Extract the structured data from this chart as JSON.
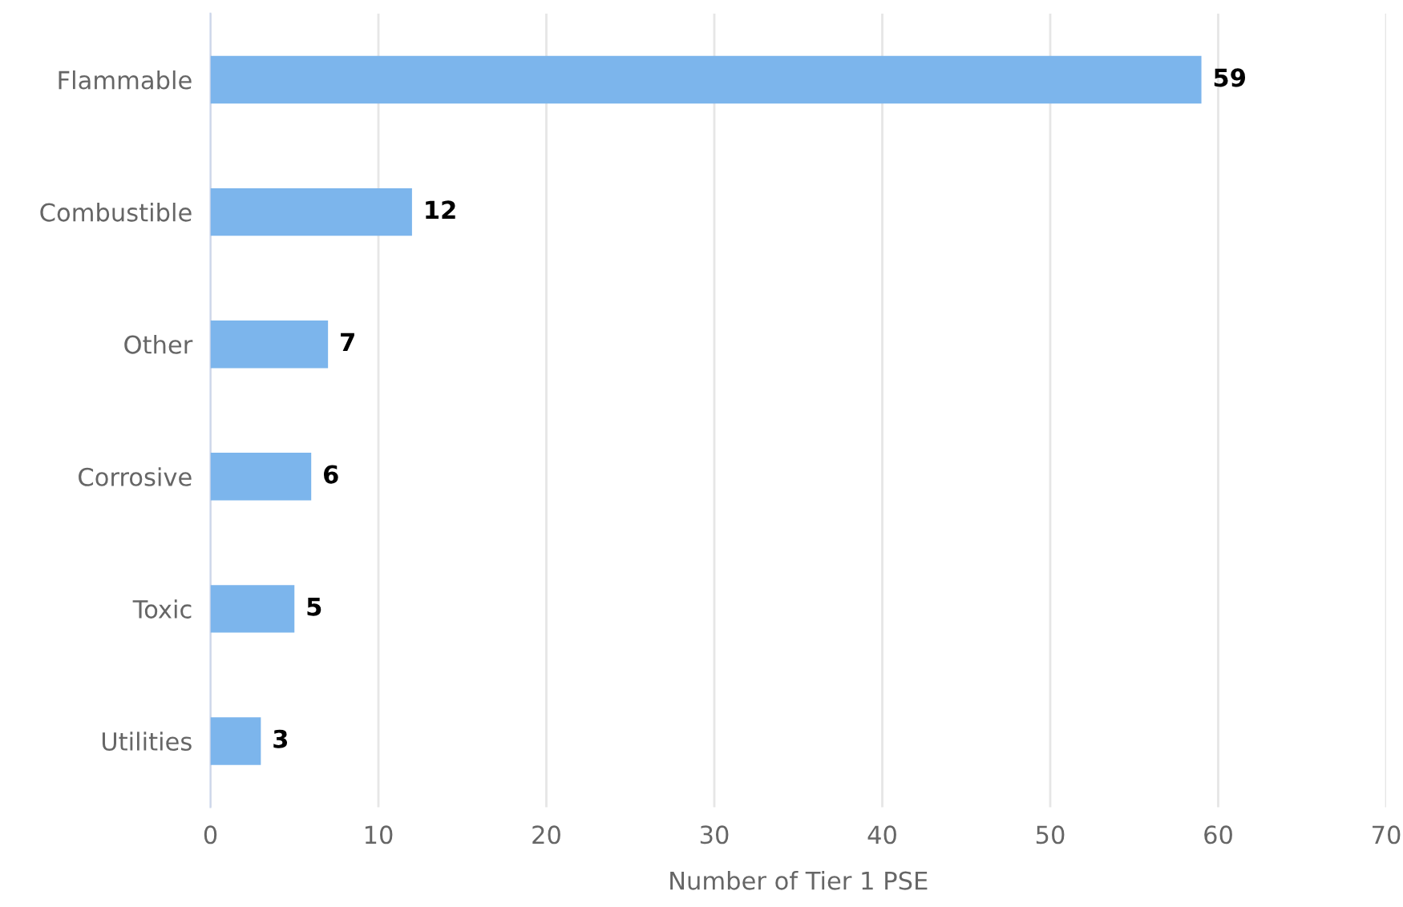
{
  "chart_data": {
    "type": "bar",
    "orientation": "horizontal",
    "categories": [
      "Flammable",
      "Combustible",
      "Other",
      "Corrosive",
      "Toxic",
      "Utilities"
    ],
    "values": [
      59,
      12,
      7,
      6,
      5,
      3
    ],
    "color": "#7cb5ec",
    "xlabel": "Number of Tier 1 PSE",
    "xlim": [
      0,
      70
    ],
    "xticks": [
      0,
      10,
      20,
      30,
      40,
      50,
      60,
      70
    ],
    "grid": "x",
    "data_labels": true
  }
}
